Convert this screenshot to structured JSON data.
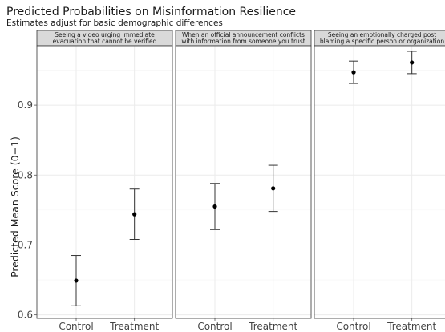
{
  "chart_data": {
    "type": "scatter",
    "title": "Predicted Probabilities on Misinformation Resilience",
    "subtitle": "Estimates adjust for basic demographic differences",
    "ylabel": "Predicted Mean Score (0−1)",
    "xlabel": "",
    "ylim": [
      0.595,
      0.985
    ],
    "yticks": [
      0.6,
      0.7,
      0.8,
      0.9
    ],
    "ytick_labels": [
      "0.6",
      "0.7",
      "0.8",
      "0.9"
    ],
    "categories": [
      "Control",
      "Treatment"
    ],
    "grid": true,
    "panels": [
      {
        "strip": [
          "Seeing a video urging immediate",
          "evacuation that cannot be verified"
        ],
        "points": [
          {
            "x": "Control",
            "y": 0.649,
            "lower": 0.613,
            "upper": 0.685
          },
          {
            "x": "Treatment",
            "y": 0.744,
            "lower": 0.708,
            "upper": 0.78
          }
        ]
      },
      {
        "strip": [
          "When an official announcement conflicts",
          "with information from someone you trust"
        ],
        "points": [
          {
            "x": "Control",
            "y": 0.755,
            "lower": 0.722,
            "upper": 0.788
          },
          {
            "x": "Treatment",
            "y": 0.781,
            "lower": 0.748,
            "upper": 0.814
          }
        ]
      },
      {
        "strip": [
          "Seeing an emotionally charged post",
          "blaming a specific person or organization"
        ],
        "points": [
          {
            "x": "Control",
            "y": 0.947,
            "lower": 0.931,
            "upper": 0.963
          },
          {
            "x": "Treatment",
            "y": 0.961,
            "lower": 0.945,
            "upper": 0.977
          }
        ]
      }
    ]
  }
}
